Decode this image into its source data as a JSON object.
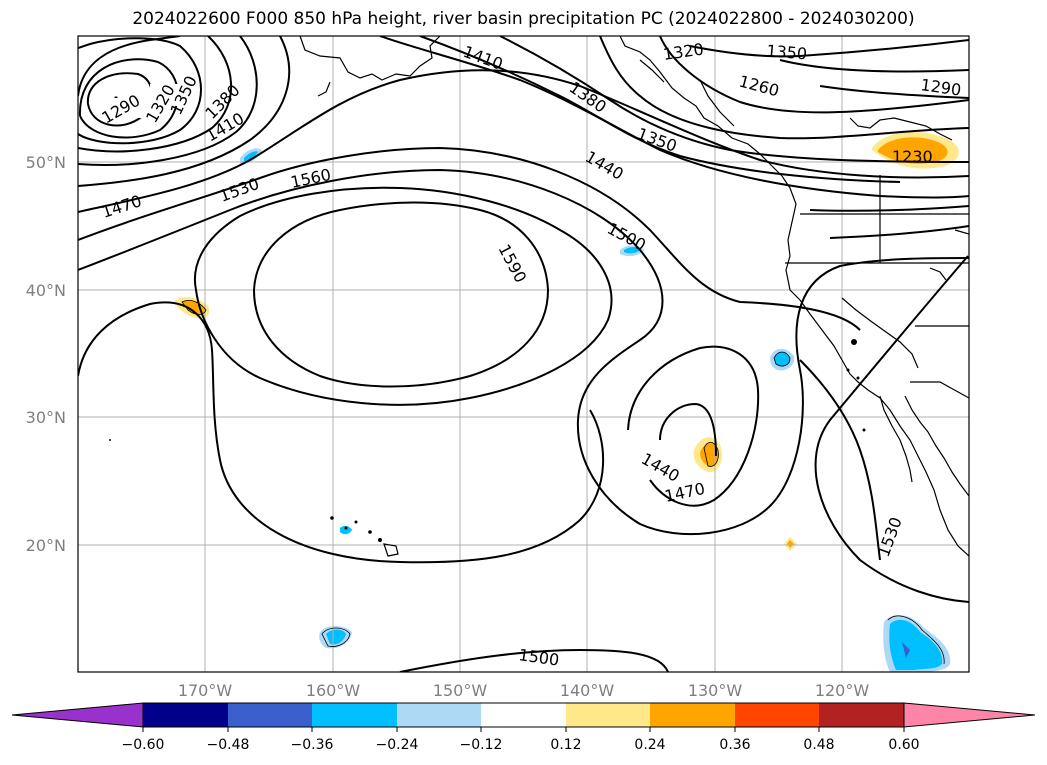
{
  "title": "2024022600 F000 850 hPa height, river basin precipitation PC (2024022800 - 2024030200)",
  "lat_labels": [
    "50°N",
    "40°N",
    "30°N",
    "20°N"
  ],
  "lon_labels": [
    "170°W",
    "160°W",
    "150°W",
    "140°W",
    "130°W",
    "120°W"
  ],
  "contour_labels": [
    "1290",
    "1320",
    "1350",
    "1380",
    "1410",
    "1410",
    "1380",
    "1350",
    "1320",
    "1350",
    "1260",
    "1290",
    "1230",
    "1440",
    "1470",
    "1530",
    "1560",
    "1500",
    "1590",
    "1440",
    "1470",
    "1530",
    "1500"
  ],
  "colorbar": {
    "ticks": [
      "−0.60",
      "−0.48",
      "−0.36",
      "−0.24",
      "−0.12",
      "0.12",
      "0.24",
      "0.36",
      "0.48",
      "0.60"
    ],
    "colors": [
      "#9932cc",
      "#00008b",
      "#3a5fcd",
      "#00bfff",
      "#add8f6",
      "#ffffff",
      "#ffe88a",
      "#ffa500",
      "#ff4500",
      "#b22222",
      "#ff85a8"
    ]
  },
  "chart_data": {
    "type": "map",
    "title": "2024022600 F000 850 hPa height, river basin precipitation PC (2024022800 - 2024030200)",
    "contour_variable": "850 hPa height",
    "contour_levels_labeled": [
      1230,
      1260,
      1290,
      1320,
      1350,
      1380,
      1410,
      1440,
      1470,
      1500,
      1530,
      1560,
      1590
    ],
    "shaded_variable": "river basin precipitation PC",
    "colorbar_bounds": [
      -0.6,
      -0.48,
      -0.36,
      -0.24,
      -0.12,
      0.12,
      0.24,
      0.36,
      0.48,
      0.6
    ],
    "lat_ticks": [
      50,
      40,
      30,
      20
    ],
    "lon_ticks": [
      -170,
      -160,
      -150,
      -140,
      -130,
      -120
    ],
    "grid": true
  }
}
